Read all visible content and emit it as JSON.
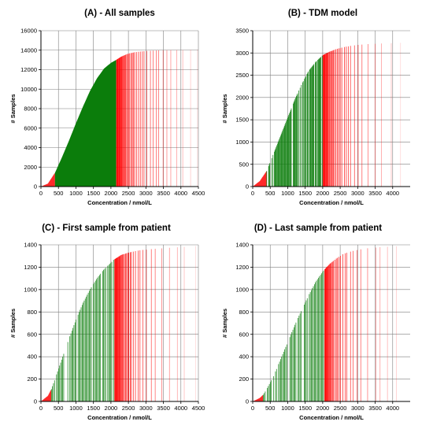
{
  "colors": {
    "in_range": "#0b7d0b",
    "out_of_range": "#ff0000",
    "grid": "#7f7f7f",
    "axis": "#000000"
  },
  "chart_data": [
    {
      "type": "area",
      "panel": "A",
      "title": "(A) - All samples",
      "xlabel": "Concentration / nmol/L",
      "ylabel": "# Samples",
      "xlim": [
        0,
        4500
      ],
      "ylim": [
        0,
        16000
      ],
      "xticks": [
        "0",
        "500",
        "1000",
        "1500",
        "2000",
        "2500",
        "3000",
        "3500",
        "4000",
        "4500"
      ],
      "yticks": [
        "0",
        "2000",
        "4000",
        "6000",
        "8000",
        "10000",
        "12000",
        "14000",
        "16000"
      ],
      "grid": true,
      "green_range": [
        400,
        2150
      ],
      "red_max_x": 4500,
      "fade_start": 2600,
      "density": "high",
      "x": [
        0,
        200,
        400,
        600,
        800,
        1000,
        1200,
        1400,
        1600,
        1800,
        2000,
        2150,
        2300,
        2500,
        2700,
        3000,
        3300,
        3600,
        4000,
        4500
      ],
      "y": [
        0,
        300,
        1400,
        3000,
        4700,
        6500,
        8200,
        9800,
        11100,
        12100,
        12700,
        13000,
        13350,
        13650,
        13800,
        13920,
        13970,
        14000,
        14020,
        14050
      ]
    },
    {
      "type": "area",
      "panel": "B",
      "title": "(B) - TDM model",
      "xlabel": "Concentration / nmol/L",
      "ylabel": "# Samples",
      "xlim": [
        0,
        4500
      ],
      "ylim": [
        0,
        3500
      ],
      "xticks": [
        "0",
        "500",
        "1000",
        "1500",
        "2000",
        "2500",
        "3000",
        "3500",
        "4000"
      ],
      "yticks": [
        "0",
        "500",
        "1000",
        "1500",
        "2000",
        "2500",
        "3000",
        "3500"
      ],
      "grid": true,
      "green_range": [
        400,
        2000
      ],
      "red_max_x": 4300,
      "fade_start": 2500,
      "density": "medium",
      "x": [
        0,
        200,
        400,
        600,
        800,
        1000,
        1200,
        1400,
        1600,
        1800,
        2000,
        2200,
        2400,
        2600,
        2800,
        3000,
        3300,
        3600,
        4000,
        4300
      ],
      "y": [
        0,
        120,
        350,
        750,
        1150,
        1550,
        1950,
        2300,
        2600,
        2800,
        2950,
        3030,
        3090,
        3130,
        3160,
        3180,
        3200,
        3210,
        3220,
        3230
      ]
    },
    {
      "type": "area",
      "panel": "C",
      "title": "(C) - First sample from patient",
      "xlabel": "Concentration / nmol/L",
      "ylabel": "# Samples",
      "xlim": [
        0,
        4500
      ],
      "ylim": [
        0,
        1400
      ],
      "xticks": [
        "0",
        "500",
        "1000",
        "1500",
        "2000",
        "2500",
        "3000",
        "3500",
        "4000",
        "4500"
      ],
      "yticks": [
        "0",
        "200",
        "400",
        "600",
        "800",
        "1000",
        "1200",
        "1400"
      ],
      "grid": true,
      "green_range": [
        300,
        2100
      ],
      "red_max_x": 4500,
      "fade_start": 2500,
      "density": "low",
      "x": [
        0,
        200,
        300,
        400,
        600,
        800,
        1000,
        1200,
        1400,
        1600,
        1800,
        2000,
        2100,
        2300,
        2500,
        2800,
        3100,
        3500,
        4000,
        4500
      ],
      "y": [
        0,
        50,
        110,
        200,
        380,
        560,
        730,
        880,
        1000,
        1100,
        1180,
        1240,
        1270,
        1310,
        1330,
        1350,
        1360,
        1370,
        1380,
        1390
      ]
    },
    {
      "type": "area",
      "panel": "D",
      "title": "(D) - Last sample from patient",
      "xlabel": "Concentration / nmol/L",
      "ylabel": "# Samples",
      "xlim": [
        0,
        4500
      ],
      "ylim": [
        0,
        1400
      ],
      "xticks": [
        "0",
        "500",
        "1000",
        "1500",
        "2000",
        "2500",
        "3000",
        "3500",
        "4000"
      ],
      "yticks": [
        "0",
        "200",
        "400",
        "600",
        "800",
        "1000",
        "1200",
        "1400"
      ],
      "grid": true,
      "green_range": [
        300,
        2050
      ],
      "red_max_x": 4300,
      "fade_start": 2400,
      "density": "low",
      "x": [
        0,
        200,
        300,
        400,
        600,
        800,
        1000,
        1200,
        1400,
        1600,
        1800,
        2000,
        2200,
        2400,
        2600,
        2800,
        3000,
        3300,
        3700,
        4300
      ],
      "y": [
        0,
        30,
        60,
        110,
        230,
        380,
        530,
        680,
        820,
        950,
        1070,
        1160,
        1230,
        1280,
        1320,
        1340,
        1355,
        1370,
        1380,
        1390
      ]
    }
  ]
}
